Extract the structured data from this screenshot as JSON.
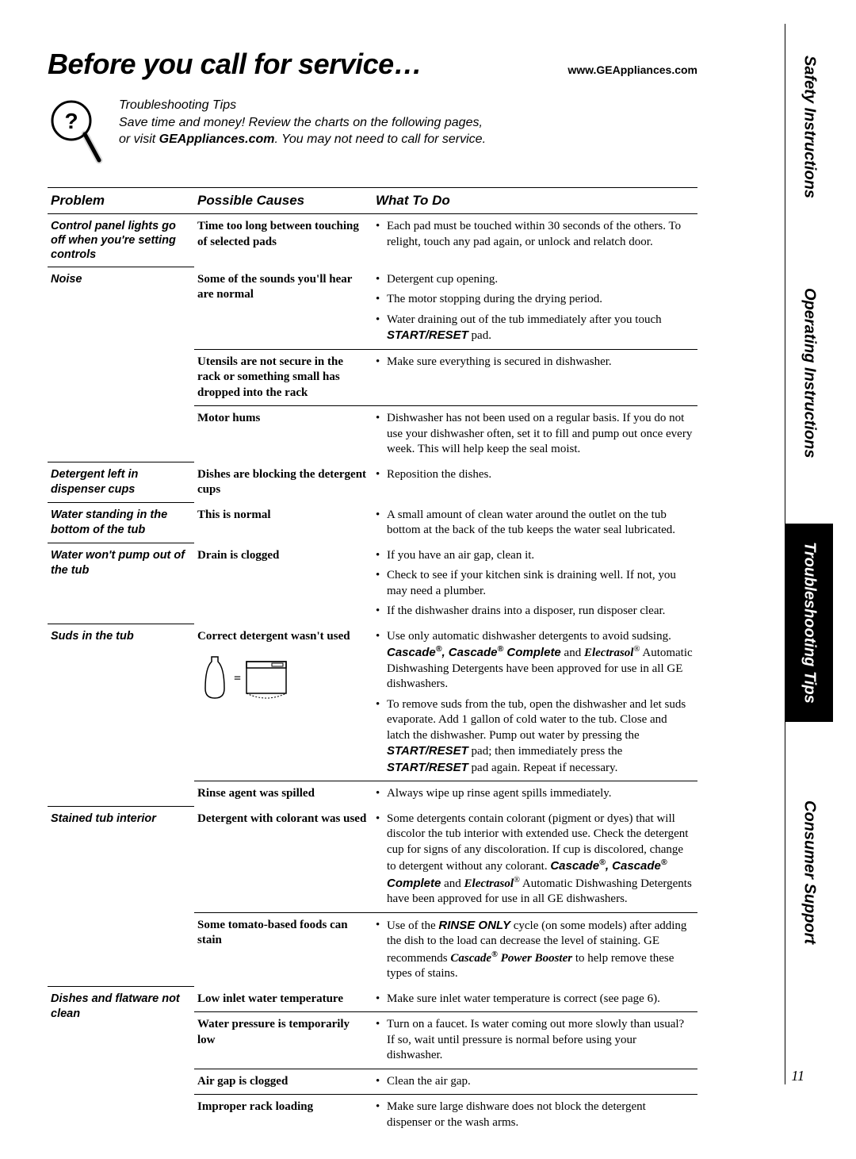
{
  "header": {
    "title": "Before you call for service…",
    "url": "www.GEAppliances.com"
  },
  "intro": {
    "heading": "Troubleshooting Tips",
    "line1": "Save time and money! Review the charts on the following pages,",
    "line2a": "or visit ",
    "line2b": "GEAppliances.com",
    "line2c": ". You may not need to call for service."
  },
  "table": {
    "headers": {
      "problem": "Problem",
      "cause": "Possible Causes",
      "what": "What To Do"
    }
  },
  "rows": [
    {
      "problem": "Control panel lights go off when you're setting controls",
      "causes": [
        {
          "cause": "Time too long between touching of selected pads",
          "whats": [
            "Each pad must be touched within 30 seconds of the others. To relight, touch any pad again, or unlock and relatch door."
          ]
        }
      ]
    },
    {
      "problem": "Noise",
      "causes": [
        {
          "cause": "Some of the sounds you'll hear are normal",
          "whats_html": [
            "Detergent cup opening.",
            "The motor stopping during the drying period.",
            "Water draining out of the tub immediately after you touch <span class='sans-boldital'>START/RESET</span> pad."
          ]
        },
        {
          "cause": "Utensils are not secure in the rack or something small has dropped into the rack",
          "whats": [
            "Make sure everything is secured in dishwasher."
          ]
        },
        {
          "cause": "Motor hums",
          "whats": [
            "Dishwasher has not been used on a regular basis. If you do not use your dishwasher often, set it to fill and pump out once every week. This will help keep the seal moist."
          ]
        }
      ]
    },
    {
      "problem": "Detergent left in dispenser cups",
      "causes": [
        {
          "cause": "Dishes are blocking the detergent cups",
          "whats": [
            "Reposition the dishes."
          ]
        }
      ]
    },
    {
      "problem": "Water standing in the bottom of the tub",
      "causes": [
        {
          "cause": "This is normal",
          "whats": [
            "A small amount of clean water around the outlet on the tub bottom at the back of the tub keeps the water seal lubricated."
          ]
        }
      ]
    },
    {
      "problem": "Water won't pump out of the tub",
      "causes": [
        {
          "cause": "Drain is clogged",
          "whats": [
            "If you have an air gap, clean it.",
            "Check to see if your kitchen sink is draining well. If not, you may need a plumber.",
            "If the dishwasher drains into a disposer, run disposer clear."
          ]
        }
      ]
    },
    {
      "problem": "Suds in the tub",
      "causes": [
        {
          "cause": "Correct detergent wasn't used",
          "illus": true,
          "whats_html": [
            "Use only automatic dishwasher detergents to avoid sudsing. <span class='sans-boldital'>Cascade<span class='sup'>®</span>, Cascade<span class='sup'>®</span> Complete</span> and <span class='boldital'>Electrasol</span><span class='sup'>®</span> Automatic Dishwashing Detergents have been approved for use in all GE dishwashers.",
            "To remove suds from the tub, open the dishwasher and let suds evaporate. Add 1 gallon of cold water to the tub. Close and latch the dishwasher. Pump out water by pressing the <span class='sans-boldital'>START/RESET</span> pad; then immediately press the <span class='sans-boldital'>START/RESET</span> pad again. Repeat if necessary."
          ]
        },
        {
          "cause": "Rinse agent was spilled",
          "whats": [
            "Always wipe up rinse agent spills immediately."
          ]
        }
      ]
    },
    {
      "problem": "Stained tub interior",
      "causes": [
        {
          "cause": "Detergent with colorant was used",
          "whats_html": [
            "Some detergents contain colorant (pigment or dyes) that will discolor the tub interior with extended use. Check the detergent cup for signs of any discoloration. If cup is discolored, change to detergent without any colorant. <span class='sans-boldital'>Cascade<span class='sup'>®</span>, Cascade<span class='sup'>®</span> Complete</span> and <span class='boldital'>Electrasol</span><span class='sup'>®</span> Automatic Dishwashing Detergents have been approved for use in all GE dishwashers."
          ]
        },
        {
          "cause": "Some tomato-based foods can stain",
          "whats_html": [
            "Use of the <span class='sans-boldital'>RINSE ONLY</span> cycle (on some models) after adding the dish to the load can decrease the level of staining. GE recommends <span class='boldital'>Cascade<span class='sup'>®</span> Power Booster</span> to help remove these types of stains."
          ]
        }
      ]
    },
    {
      "problem": "Dishes and flatware not clean",
      "causes": [
        {
          "cause": "Low inlet water temperature",
          "whats": [
            "Make sure inlet water temperature is correct (see page 6)."
          ]
        },
        {
          "cause": "Water pressure is temporarily low",
          "whats": [
            "Turn on a faucet. Is water coming out more slowly than usual? If so, wait until pressure is normal before using your dishwasher."
          ]
        },
        {
          "cause": "Air gap is clogged",
          "whats": [
            "Clean the air gap."
          ]
        },
        {
          "cause": "Improper rack loading",
          "whats": [
            "Make sure large dishware does not block the detergent dispenser or the wash arms."
          ]
        }
      ]
    }
  ],
  "sidebar": {
    "safety": "Safety Instructions",
    "operating": "Operating Instructions",
    "trouble": "Troubleshooting Tips",
    "support": "Consumer Support"
  },
  "page_num": "11"
}
